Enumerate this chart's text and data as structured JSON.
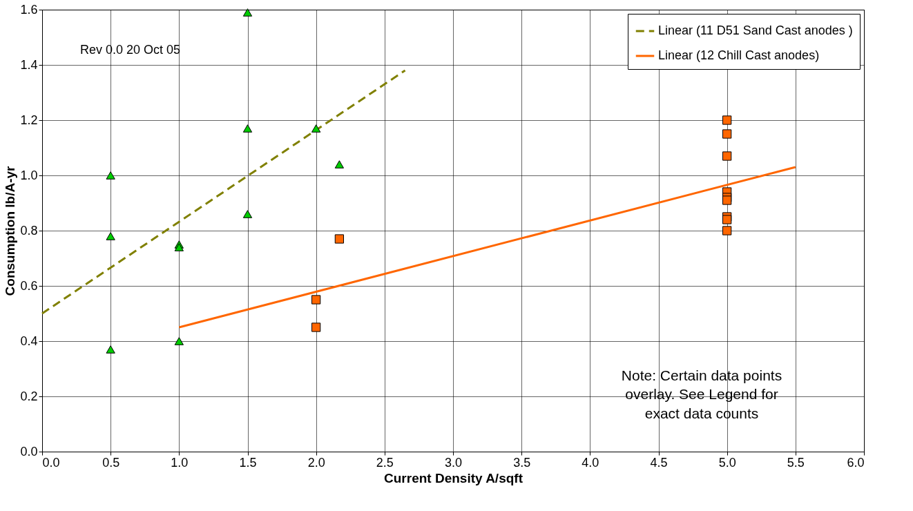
{
  "chart_data": {
    "type": "scatter",
    "xlabel": "Current Density A/sqft",
    "ylabel": "Consumption lb/A-yr",
    "xlim": [
      0,
      6
    ],
    "xticks": [
      {
        "value": 0,
        "label": "0.0"
      },
      0.5,
      {
        "value": 1,
        "label": "1.0"
      },
      1.5,
      {
        "value": 2,
        "label": "2.0"
      },
      2.5,
      {
        "value": 3,
        "label": "3.0"
      },
      3.5,
      {
        "value": 4,
        "label": "4.0"
      },
      4.5,
      {
        "value": 5,
        "label": "5.0"
      },
      5.5,
      {
        "value": 6,
        "label": "6.0"
      }
    ],
    "ylim": [
      0,
      1.6
    ],
    "yticks": [
      {
        "value": 0,
        "label": "0.0"
      },
      0.2,
      0.4,
      0.6,
      0.8,
      {
        "value": 1,
        "label": "1.0"
      },
      1.2,
      1.4,
      1.6
    ],
    "grid": true,
    "legend": "top right",
    "series": [
      {
        "marker": "triangle",
        "color": "#00cc00",
        "x": [
          0.5,
          0.5,
          0.5,
          1.0,
          1.0,
          1.0,
          1.5,
          1.5,
          1.5,
          2.0,
          2.17
        ],
        "values": [
          1.0,
          0.78,
          0.37,
          0.75,
          0.74,
          0.4,
          1.59,
          1.17,
          0.86,
          1.17,
          1.04
        ]
      },
      {
        "marker": "square",
        "color": "#ff6600",
        "x": [
          2.0,
          2.0,
          2.17,
          5.0,
          5.0,
          5.0,
          5.0,
          5.0,
          5.0,
          5.0,
          5.0,
          5.0
        ],
        "values": [
          0.55,
          0.45,
          0.77,
          1.2,
          1.15,
          1.07,
          0.94,
          0.92,
          0.91,
          0.85,
          0.84,
          0.8
        ]
      },
      {
        "type": "line",
        "name": "Linear (11 D51 Sand Cast anodes )",
        "color": "#808000",
        "line_style": "dashed",
        "x": [
          0,
          2.65
        ],
        "values": [
          0.5,
          1.38
        ]
      },
      {
        "type": "line",
        "name": "Linear (12 Chill Cast anodes)",
        "color": "#ff6600",
        "line_style": "solid",
        "x": [
          1.0,
          5.5
        ],
        "values": [
          0.45,
          1.03
        ]
      }
    ],
    "annotations": [
      "Rev 0.0 20 Oct 05",
      "Note:  Certain data points\noverlay.  See Legend for\nexact data counts"
    ]
  }
}
